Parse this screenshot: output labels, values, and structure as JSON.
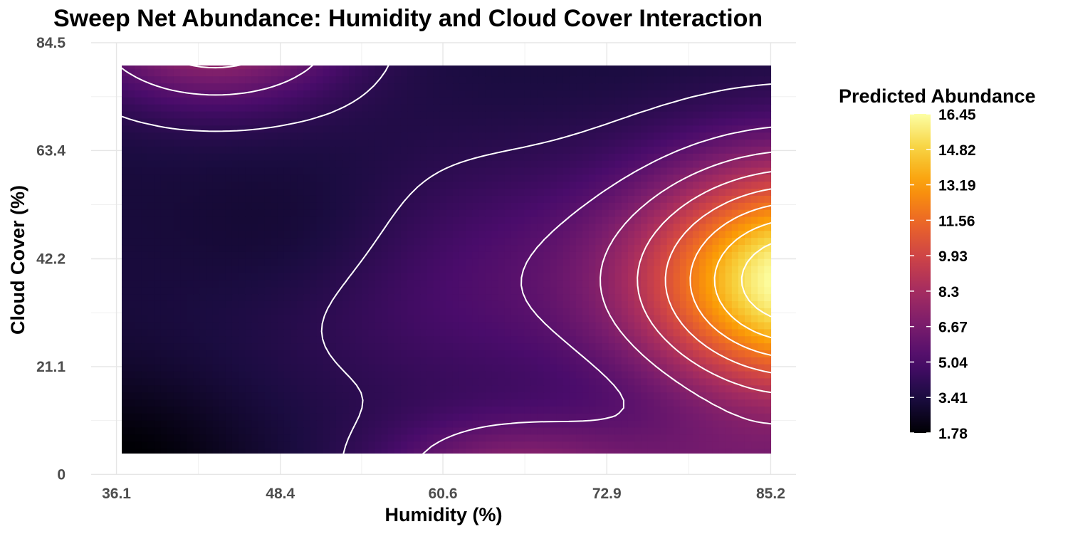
{
  "chart_data": {
    "type": "heatmap",
    "title": "Sweep Net Abundance: Humidity and Cloud Cover Interaction",
    "xlabel": "Humidity (%)",
    "ylabel": "Cloud Cover (%)",
    "x_ticks": [
      "36.1",
      "48.4",
      "60.6",
      "72.9",
      "85.2"
    ],
    "y_ticks": [
      "0",
      "21.1",
      "42.2",
      "63.4",
      "84.5"
    ],
    "xlim": [
      34.2,
      87.1
    ],
    "ylim": [
      -0.1,
      84.5
    ],
    "data_extent": {
      "x": [
        36.5,
        85.2
      ],
      "y": [
        1.0,
        83.5
      ]
    },
    "legend": {
      "title": "Predicted Abundance",
      "placement": "right",
      "breaks": [
        "16.45",
        "14.82",
        "13.19",
        "11.56",
        "9.93",
        "8.3",
        "6.67",
        "5.04",
        "3.41",
        "1.78"
      ],
      "min": 1.78,
      "max": 16.45
    },
    "colorscale": "inferno",
    "color_stops": [
      "#000004",
      "#1b0c41",
      "#4a0c6b",
      "#781c6d",
      "#a52c60",
      "#cf4446",
      "#ed6925",
      "#fb9b06",
      "#f7d13d",
      "#fcffa4"
    ],
    "grid": true,
    "contour_lines": true,
    "contour_color": "#ffffff"
  }
}
